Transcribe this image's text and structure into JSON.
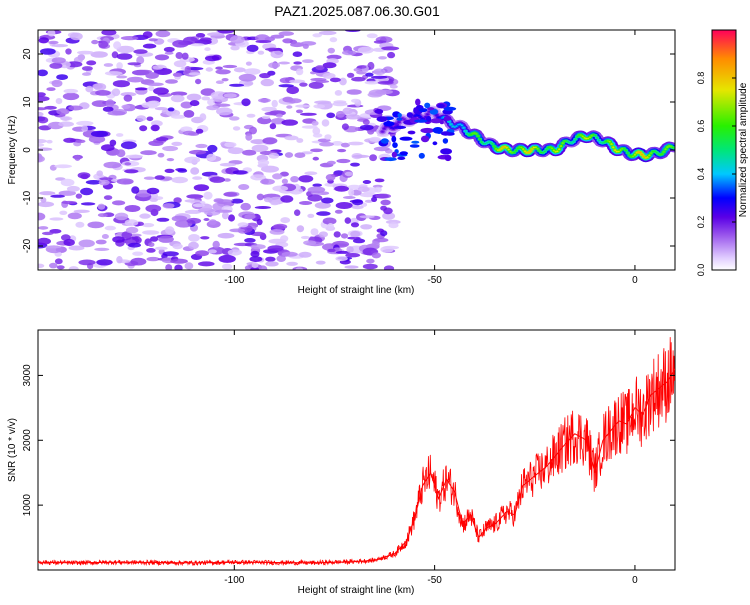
{
  "title": "PAZ1.2025.087.06.30.G01",
  "chart_data": [
    {
      "type": "heatmap",
      "xlabel": "Height of straight line (km)",
      "ylabel": "Frequency (Hz)",
      "xlim": [
        -149,
        10
      ],
      "ylim": [
        -25,
        25
      ],
      "xticks": [
        -100,
        -50,
        0
      ],
      "yticks": [
        -20,
        -10,
        0,
        10,
        20
      ],
      "colorbar": {
        "label": "Normalized spectral amplitude",
        "range": [
          0,
          1
        ],
        "ticks": [
          "0.0",
          "0.2",
          "0.4",
          "0.6",
          "0.8"
        ],
        "tick_values": [
          0.0,
          0.2,
          0.4,
          0.6,
          0.8
        ]
      },
      "noise_region": {
        "x_range": [
          -149,
          -60
        ],
        "freq_range": [
          -25,
          25
        ],
        "amplitude_range": [
          0.05,
          0.25
        ]
      },
      "ridge": {
        "x": [
          -63,
          -58,
          -53,
          -50,
          -47,
          -44,
          -40,
          -36,
          -32,
          -28,
          -24,
          -20,
          -16,
          -12,
          -8,
          -4,
          0,
          4,
          8,
          10
        ],
        "frequency": [
          4,
          6,
          7,
          8,
          6,
          5,
          3,
          1,
          0,
          0,
          0,
          0,
          2,
          3,
          2,
          0,
          -1,
          -1,
          0,
          1
        ],
        "amplitude": [
          0.25,
          0.3,
          0.3,
          0.3,
          0.45,
          0.55,
          0.65,
          0.7,
          0.85,
          0.85,
          0.8,
          0.75,
          0.7,
          0.75,
          0.7,
          0.8,
          0.85,
          0.85,
          0.7,
          0.6
        ]
      },
      "grid": false
    },
    {
      "type": "line",
      "xlabel": "Height of straight line (km)",
      "ylabel": "SNR (10 * v/v)",
      "xlim": [
        -149,
        10
      ],
      "ylim": [
        0,
        3700
      ],
      "xticks": [
        -100,
        -50,
        0
      ],
      "yticks": [
        1000,
        2000,
        3000
      ],
      "color": "#ff0000",
      "series": [
        {
          "x": [
            -149,
            -140,
            -130,
            -120,
            -110,
            -100,
            -90,
            -80,
            -70,
            -65,
            -60,
            -57,
            -55,
            -53,
            -51,
            -49,
            -47,
            -45,
            -43,
            -41,
            -39,
            -37,
            -35,
            -32,
            -30,
            -28,
            -25,
            -22,
            -20,
            -18,
            -15,
            -12,
            -10,
            -8,
            -6,
            -4,
            -2,
            0,
            2,
            4,
            6,
            8,
            10
          ],
          "y": [
            120,
            110,
            120,
            115,
            110,
            120,
            115,
            110,
            130,
            150,
            250,
            450,
            800,
            1300,
            1500,
            1100,
            1400,
            1200,
            700,
            850,
            500,
            650,
            700,
            900,
            850,
            1300,
            1450,
            1600,
            1750,
            1900,
            2100,
            2000,
            1500,
            2000,
            2150,
            2300,
            2250,
            2500,
            2400,
            2700,
            2800,
            2900,
            3100
          ]
        }
      ],
      "grid": false
    }
  ]
}
